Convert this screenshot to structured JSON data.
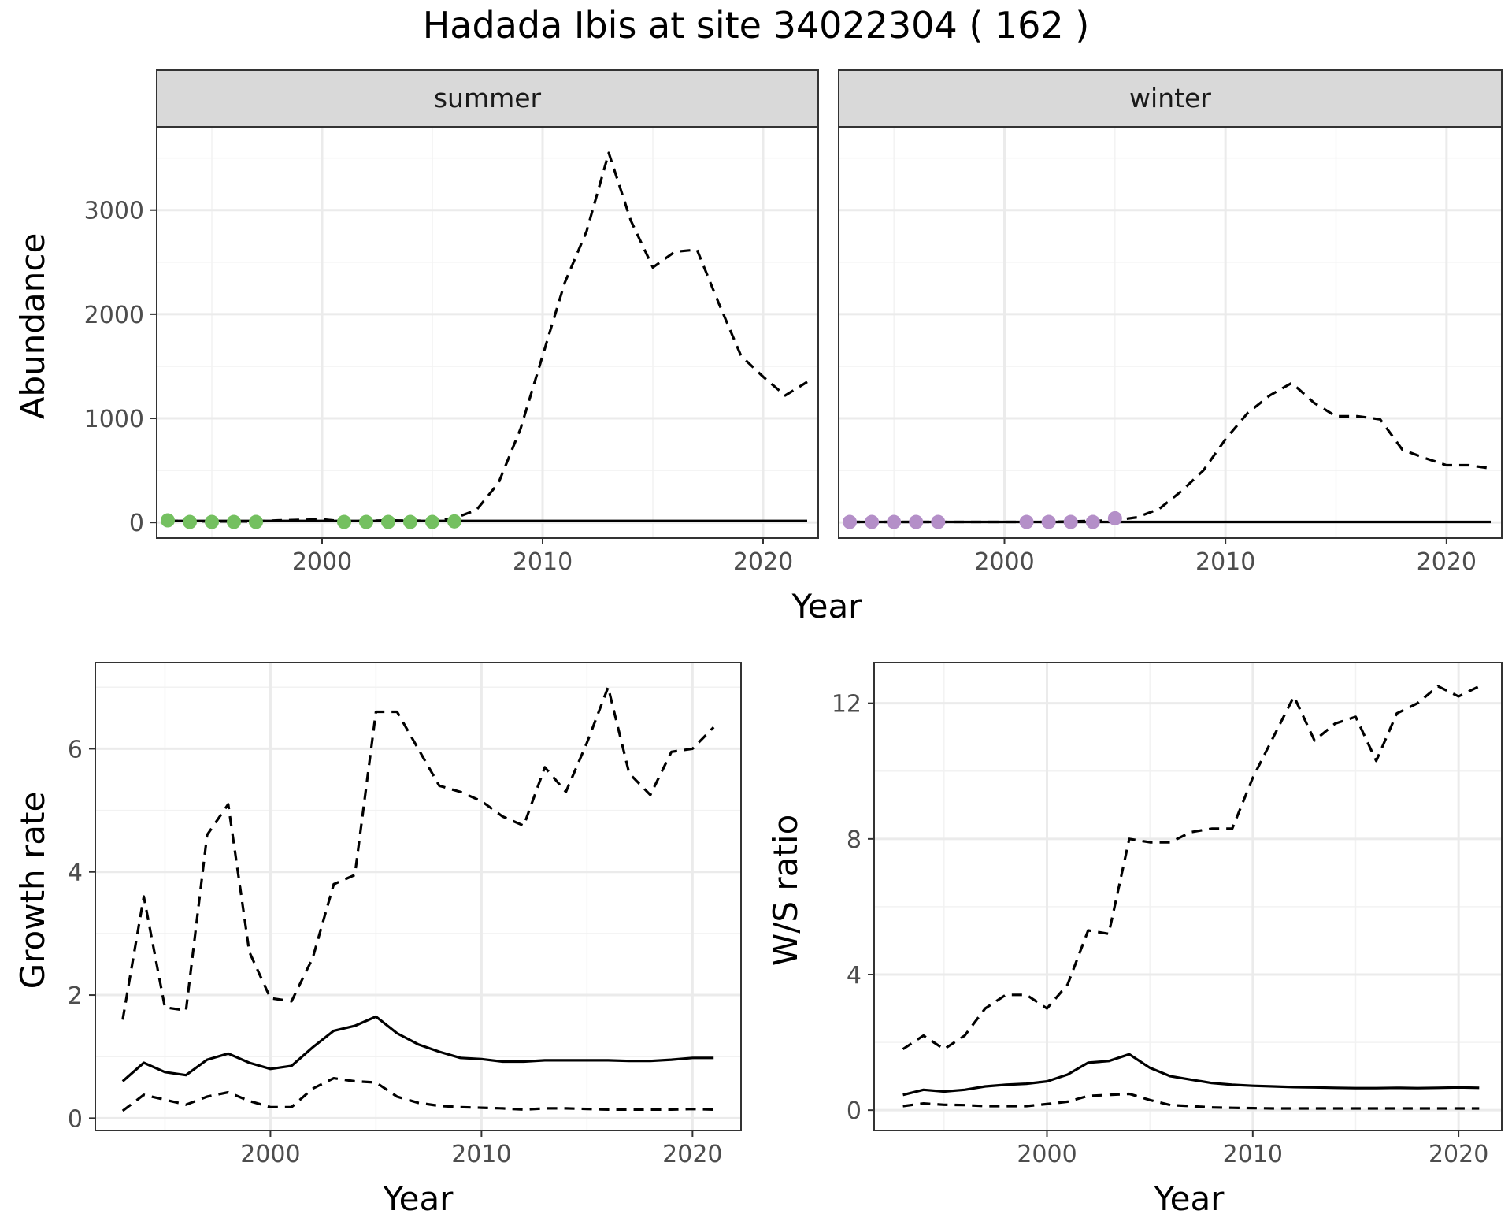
{
  "title": "Hadada Ibis at site 34022304 ( 162 )",
  "colors": {
    "summer_points": "#74c060",
    "winter_points": "#b48fc8",
    "line": "#000000",
    "grid": "#ebebeb",
    "strip_bg": "#d9d9d9"
  },
  "chart_data": [
    {
      "type": "line",
      "title": "summer",
      "xlabel": "Year",
      "ylabel": "Abundance",
      "xlim": [
        1992.5,
        2022.5
      ],
      "ylim": [
        -150,
        3800
      ],
      "x_ticks": [
        2000,
        2010,
        2020
      ],
      "y_ticks": [
        0,
        1000,
        2000,
        3000
      ],
      "grid": true,
      "series": [
        {
          "style": "solid",
          "x": [
            1993,
            2022
          ],
          "y": [
            15,
            15
          ]
        },
        {
          "style": "dashed",
          "x": [
            1993,
            1995,
            1997,
            1998,
            2000,
            2001,
            2003,
            2005,
            2006,
            2007,
            2008,
            2009,
            2010,
            2011,
            2012,
            2013,
            2014,
            2015,
            2016,
            2017,
            2018,
            2019,
            2020,
            2021,
            2022
          ],
          "y": [
            15,
            10,
            10,
            20,
            30,
            10,
            20,
            15,
            40,
            120,
            380,
            900,
            1600,
            2300,
            2800,
            3550,
            2900,
            2450,
            2600,
            2620,
            2100,
            1600,
            1400,
            1220,
            1350
          ]
        },
        {
          "style": "points",
          "x": [
            1993,
            1994,
            1995,
            1996,
            1997,
            2001,
            2002,
            2003,
            2004,
            2005,
            2006
          ],
          "y": [
            20,
            5,
            5,
            5,
            5,
            5,
            5,
            5,
            5,
            5,
            10
          ]
        }
      ]
    },
    {
      "type": "line",
      "title": "winter",
      "xlabel": "Year",
      "ylabel": "Abundance",
      "xlim": [
        1992.5,
        2022.5
      ],
      "ylim": [
        -150,
        3800
      ],
      "x_ticks": [
        2000,
        2010,
        2020
      ],
      "grid": true,
      "series": [
        {
          "style": "solid",
          "x": [
            1993,
            2022
          ],
          "y": [
            5,
            5
          ]
        },
        {
          "style": "dashed",
          "x": [
            1993,
            1996,
            1999,
            2002,
            2005,
            2006,
            2007,
            2008,
            2009,
            2010,
            2011,
            2012,
            2013,
            2014,
            2015,
            2016,
            2017,
            2018,
            2019,
            2020,
            2021,
            2022
          ],
          "y": [
            5,
            5,
            5,
            5,
            20,
            50,
            130,
            300,
            500,
            800,
            1050,
            1220,
            1340,
            1150,
            1020,
            1020,
            990,
            700,
            620,
            550,
            550,
            520
          ]
        },
        {
          "style": "points",
          "x": [
            1993,
            1994,
            1995,
            1996,
            1997,
            2001,
            2002,
            2003,
            2004,
            2005
          ],
          "y": [
            5,
            5,
            5,
            5,
            5,
            5,
            5,
            5,
            5,
            40
          ]
        }
      ]
    },
    {
      "type": "line",
      "xlabel": "Year",
      "ylabel": "Growth rate",
      "xlim": [
        1991.7,
        2022.3
      ],
      "ylim": [
        -0.2,
        7.4
      ],
      "x_ticks": [
        2000,
        2010,
        2020
      ],
      "y_ticks": [
        0,
        2,
        4,
        6
      ],
      "grid": true,
      "series": [
        {
          "style": "solid",
          "x": [
            1993,
            1994,
            1995,
            1996,
            1997,
            1998,
            1999,
            2000,
            2001,
            2002,
            2003,
            2004,
            2005,
            2006,
            2007,
            2008,
            2009,
            2010,
            2011,
            2012,
            2013,
            2014,
            2015,
            2016,
            2017,
            2018,
            2019,
            2020,
            2021
          ],
          "y": [
            0.6,
            0.9,
            0.75,
            0.7,
            0.95,
            1.05,
            0.9,
            0.8,
            0.85,
            1.15,
            1.42,
            1.5,
            1.65,
            1.38,
            1.2,
            1.08,
            0.98,
            0.96,
            0.92,
            0.92,
            0.94,
            0.94,
            0.94,
            0.94,
            0.93,
            0.93,
            0.95,
            0.98,
            0.98
          ]
        },
        {
          "style": "dashed",
          "x": [
            1993,
            1994,
            1995,
            1996,
            1997,
            1998,
            1999,
            2000,
            2001,
            2002,
            2003,
            2004,
            2005,
            2006,
            2007,
            2008,
            2009,
            2010,
            2011,
            2012,
            2013,
            2014,
            2015,
            2016,
            2017,
            2018,
            2019,
            2020,
            2021
          ],
          "y": [
            1.6,
            3.6,
            1.8,
            1.75,
            4.6,
            5.1,
            2.7,
            1.95,
            1.9,
            2.6,
            3.8,
            3.95,
            6.6,
            6.6,
            6.0,
            5.4,
            5.3,
            5.15,
            4.9,
            4.75,
            5.7,
            5.3,
            6.1,
            7.0,
            5.6,
            5.25,
            5.95,
            6.0,
            6.35
          ]
        },
        {
          "style": "dashed",
          "x": [
            1993,
            1994,
            1995,
            1996,
            1997,
            1998,
            1999,
            2000,
            2001,
            2002,
            2003,
            2004,
            2005,
            2006,
            2007,
            2008,
            2009,
            2010,
            2011,
            2012,
            2013,
            2014,
            2015,
            2016,
            2017,
            2018,
            2019,
            2020,
            2021
          ],
          "y": [
            0.12,
            0.38,
            0.3,
            0.22,
            0.35,
            0.42,
            0.28,
            0.18,
            0.18,
            0.48,
            0.65,
            0.6,
            0.58,
            0.35,
            0.25,
            0.2,
            0.18,
            0.17,
            0.16,
            0.14,
            0.16,
            0.16,
            0.15,
            0.14,
            0.14,
            0.14,
            0.14,
            0.15,
            0.14
          ]
        }
      ]
    },
    {
      "type": "line",
      "xlabel": "Year",
      "ylabel": "W/S ratio",
      "xlim": [
        1991.6,
        2022.1
      ],
      "ylim": [
        -0.6,
        13.2
      ],
      "x_ticks": [
        2000,
        2010,
        2020
      ],
      "y_ticks": [
        0,
        4,
        8,
        12
      ],
      "grid": true,
      "series": [
        {
          "style": "solid",
          "x": [
            1993,
            1994,
            1995,
            1996,
            1997,
            1998,
            1999,
            2000,
            2001,
            2002,
            2003,
            2004,
            2005,
            2006,
            2007,
            2008,
            2009,
            2010,
            2011,
            2012,
            2013,
            2014,
            2015,
            2016,
            2017,
            2018,
            2019,
            2020,
            2021
          ],
          "y": [
            0.45,
            0.6,
            0.55,
            0.6,
            0.7,
            0.75,
            0.78,
            0.85,
            1.05,
            1.4,
            1.45,
            1.65,
            1.25,
            1.0,
            0.9,
            0.8,
            0.75,
            0.72,
            0.7,
            0.68,
            0.67,
            0.66,
            0.65,
            0.65,
            0.66,
            0.65,
            0.66,
            0.67,
            0.66
          ]
        },
        {
          "style": "dashed",
          "x": [
            1993,
            1994,
            1995,
            1996,
            1997,
            1998,
            1999,
            2000,
            2001,
            2002,
            2003,
            2004,
            2005,
            2006,
            2007,
            2008,
            2009,
            2010,
            2011,
            2012,
            2013,
            2014,
            2015,
            2016,
            2017,
            2018,
            2019,
            2020,
            2021
          ],
          "y": [
            1.8,
            2.2,
            1.8,
            2.2,
            3.0,
            3.4,
            3.4,
            3.0,
            3.7,
            5.3,
            5.2,
            8.0,
            7.9,
            7.9,
            8.2,
            8.3,
            8.3,
            9.8,
            11.0,
            12.2,
            10.9,
            11.4,
            11.6,
            10.3,
            11.7,
            12.0,
            12.5,
            12.2,
            12.5
          ]
        },
        {
          "style": "dashed",
          "x": [
            1993,
            1994,
            1995,
            1996,
            1997,
            1998,
            1999,
            2000,
            2001,
            2002,
            2003,
            2004,
            2005,
            2006,
            2007,
            2008,
            2009,
            2010,
            2011,
            2012,
            2013,
            2014,
            2015,
            2016,
            2017,
            2018,
            2019,
            2020,
            2021
          ],
          "y": [
            0.12,
            0.2,
            0.16,
            0.15,
            0.12,
            0.12,
            0.12,
            0.18,
            0.25,
            0.42,
            0.45,
            0.48,
            0.3,
            0.15,
            0.12,
            0.08,
            0.07,
            0.06,
            0.05,
            0.05,
            0.05,
            0.05,
            0.05,
            0.05,
            0.05,
            0.05,
            0.05,
            0.05,
            0.05
          ]
        }
      ]
    }
  ],
  "shared_labels": {
    "top_xlabel": "Year",
    "top_ylabel": "Abundance"
  }
}
